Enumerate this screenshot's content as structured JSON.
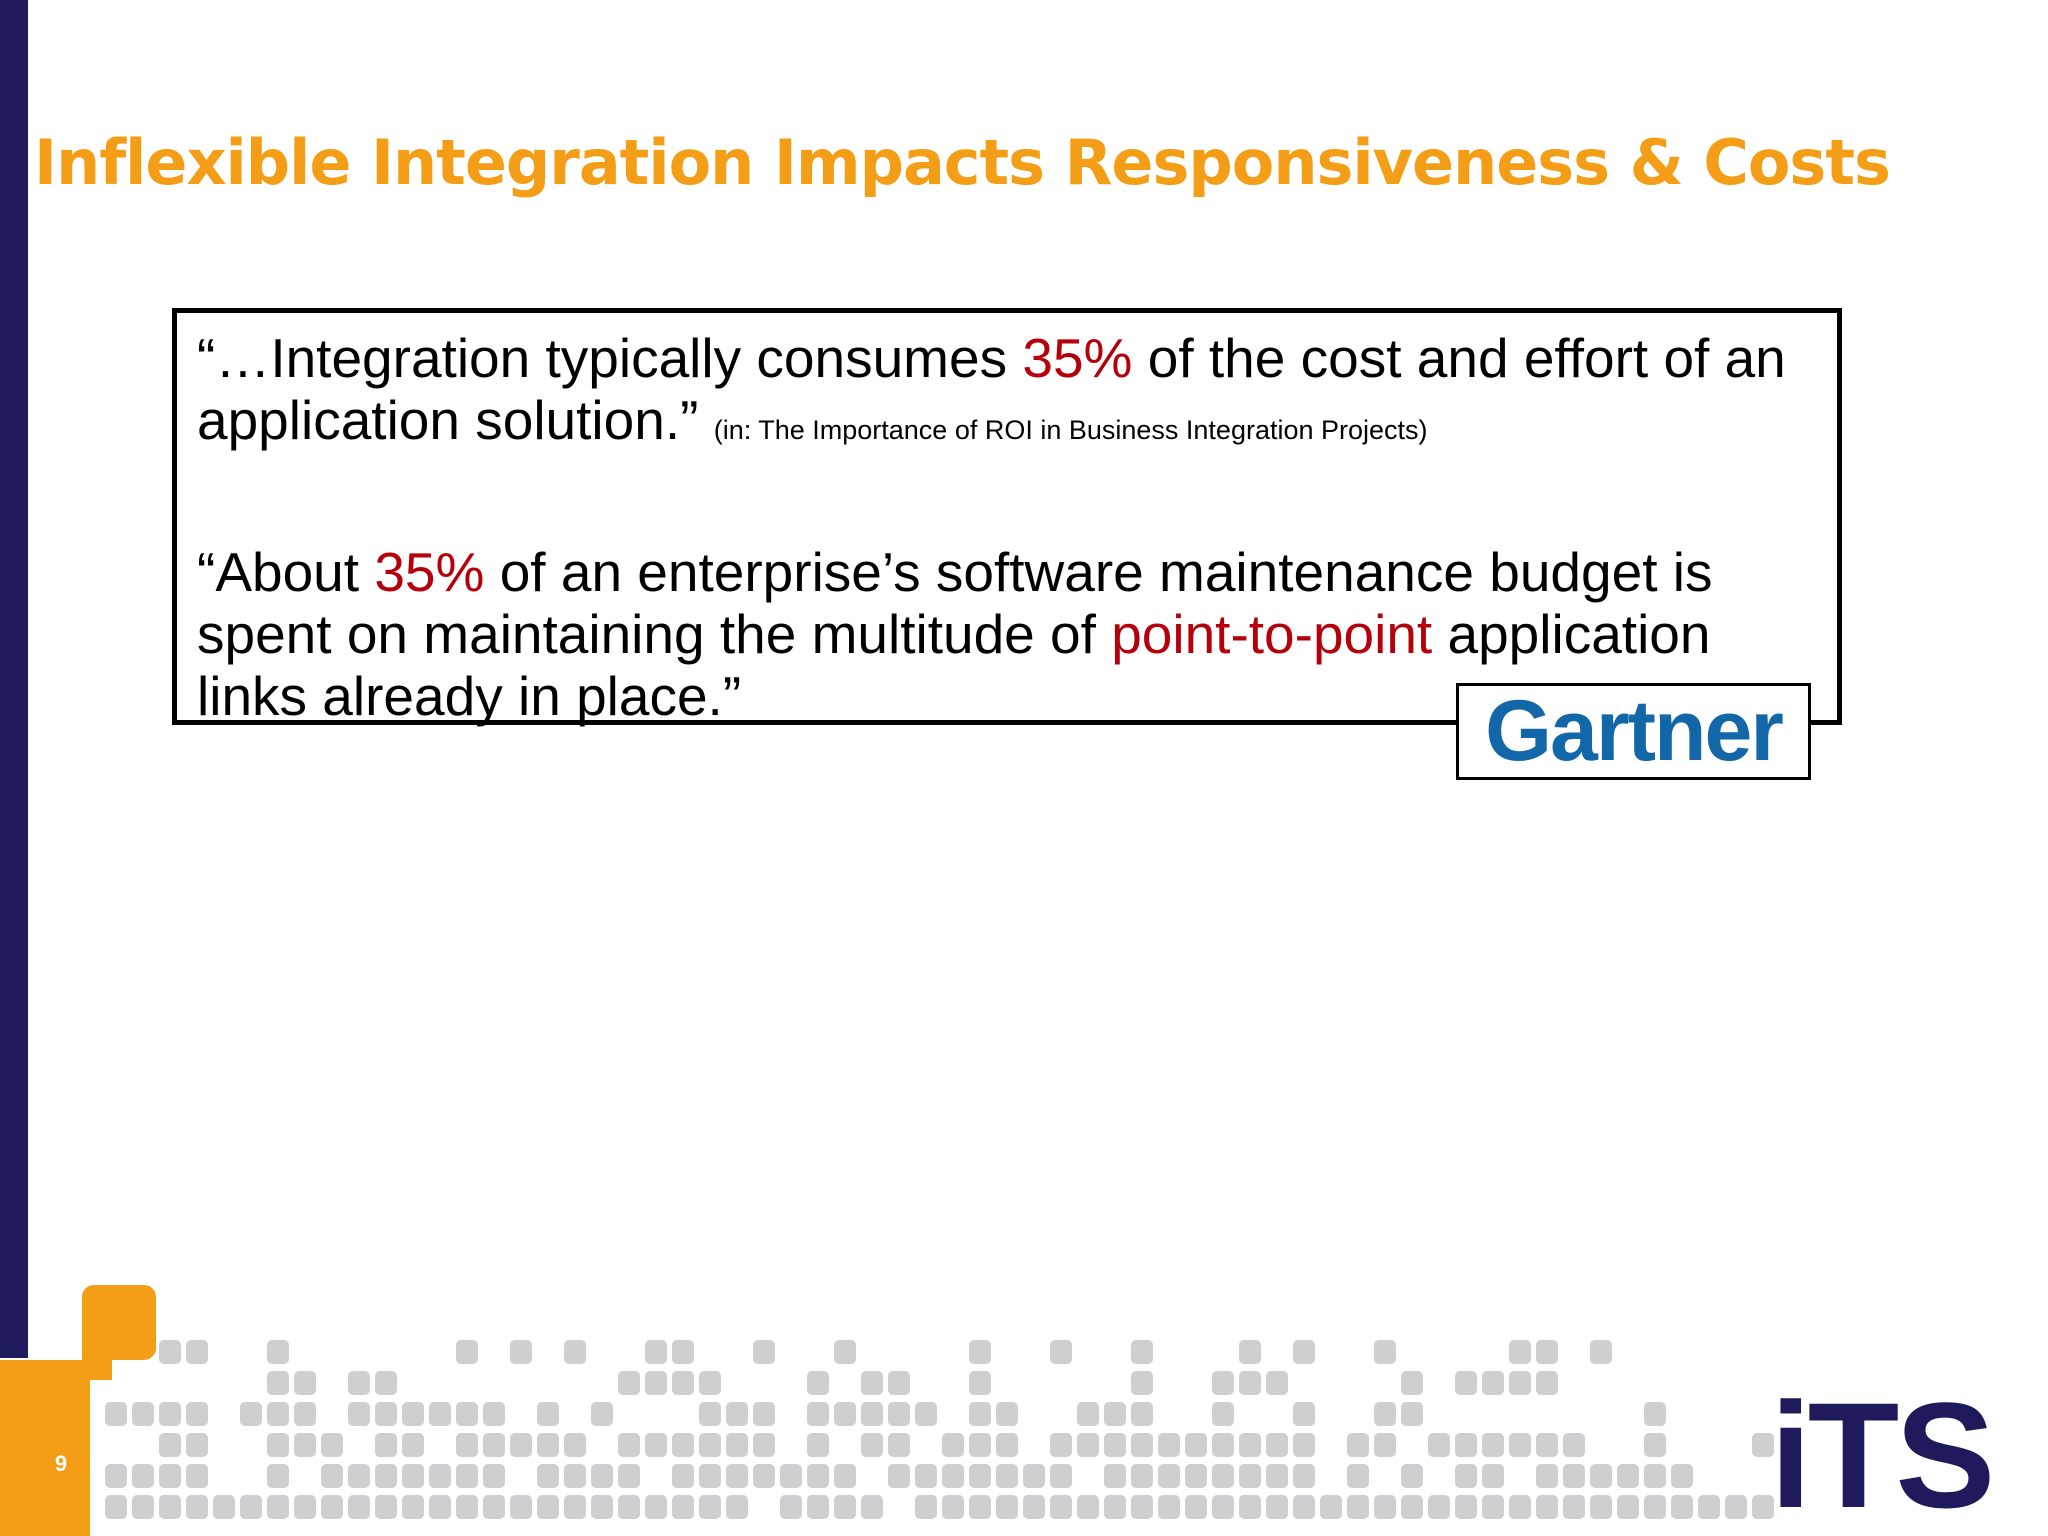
{
  "title": "Inflexible Integration Impacts Responsiveness & Costs",
  "quotes": [
    {
      "parts": [
        "“…Integration typically consumes ",
        "35%",
        " of the cost and effort of an application solution.”"
      ],
      "source": "(in: The Importance of ROI in Business Integration Projects)"
    },
    {
      "parts": [
        "“About ",
        "35%",
        " of an enterprise’s software maintenance budget is spent on maintaining the multitude of ",
        "point-to-point",
        " application links already in place.”"
      ]
    }
  ],
  "attribution": "Gartner",
  "page_number": "9",
  "footer_logo": "iTS"
}
